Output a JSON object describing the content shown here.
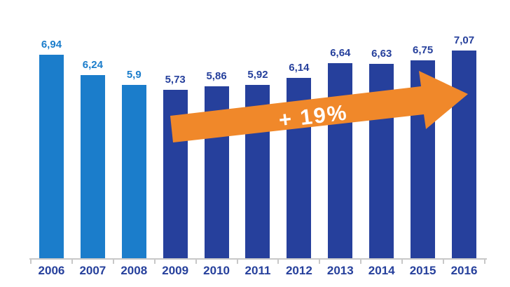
{
  "chart_data": {
    "type": "bar",
    "title": "",
    "xlabel": "",
    "ylabel": "",
    "ylim": [
      0,
      7.5
    ],
    "grid": false,
    "legend": false,
    "categories": [
      "2006",
      "2007",
      "2008",
      "2009",
      "2010",
      "2011",
      "2012",
      "2013",
      "2014",
      "2015",
      "2016"
    ],
    "values": [
      6.94,
      6.24,
      5.9,
      5.73,
      5.86,
      5.92,
      6.14,
      6.64,
      6.63,
      6.75,
      7.07
    ],
    "value_labels": [
      "6,94",
      "6,24",
      "5,9",
      "5,73",
      "5,86",
      "5,92",
      "6,14",
      "6,64",
      "6,63",
      "6,75",
      "7,07"
    ],
    "bar_colors": [
      "#1B7DCB",
      "#1B7DCB",
      "#1B7DCB",
      "#26409C",
      "#26409C",
      "#26409C",
      "#26409C",
      "#26409C",
      "#26409C",
      "#26409C",
      "#26409C"
    ],
    "label_colors": [
      "#1B7DCB",
      "#1B7DCB",
      "#1B7DCB",
      "#26409C",
      "#26409C",
      "#26409C",
      "#26409C",
      "#26409C",
      "#26409C",
      "#26409C",
      "#26409C"
    ],
    "axis_label_color": "#26409C",
    "axis_line_color": "#C8C8C8",
    "annotation": {
      "text": "+ 19%",
      "text_color": "#FFFFFF",
      "arrow_color": "#F0882A"
    }
  }
}
